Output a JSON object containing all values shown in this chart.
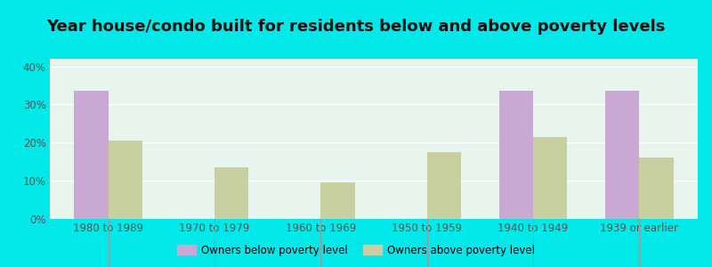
{
  "title": "Year house/condo built for residents below and above poverty levels",
  "categories": [
    "1980 to 1989",
    "1970 to 1979",
    "1960 to 1969",
    "1950 to 1959",
    "1940 to 1949",
    "1939 or earlier"
  ],
  "below_poverty": [
    33.5,
    0,
    0,
    0,
    33.5,
    33.5
  ],
  "above_poverty": [
    20.5,
    13.5,
    9.5,
    17.5,
    21.5,
    16.0
  ],
  "below_color": "#c9a8d4",
  "above_color": "#c8cfa0",
  "background_color": "#00e8e8",
  "plot_bg_color": "#e8f5ee",
  "bar_width": 0.32,
  "ylim": [
    0,
    42
  ],
  "yticks": [
    0,
    10,
    20,
    30,
    40
  ],
  "ytick_labels": [
    "0%",
    "10%",
    "20%",
    "30%",
    "40%"
  ],
  "title_fontsize": 13,
  "legend_below_label": "Owners below poverty level",
  "legend_above_label": "Owners above poverty level",
  "grid_color": "#ffffff",
  "tick_color": "#555555",
  "title_color": "#111111"
}
